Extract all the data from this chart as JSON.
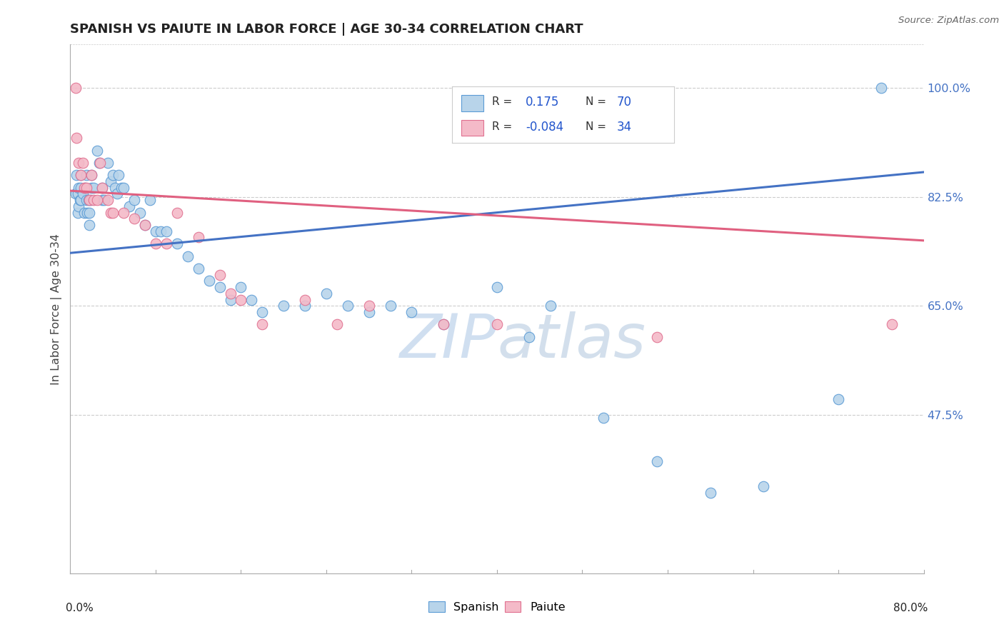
{
  "title": "SPANISH VS PAIUTE IN LABOR FORCE | AGE 30-34 CORRELATION CHART",
  "source_text": "Source: ZipAtlas.com",
  "ylabel": "In Labor Force | Age 30-34",
  "right_yticks": [
    0.475,
    0.65,
    0.825,
    1.0
  ],
  "right_yticklabels": [
    "47.5%",
    "65.0%",
    "82.5%",
    "100.0%"
  ],
  "xlim": [
    0.0,
    0.8
  ],
  "ylim": [
    0.22,
    1.07
  ],
  "blue_color": "#b8d4ea",
  "blue_edge_color": "#5b9bd5",
  "pink_color": "#f4bac8",
  "pink_edge_color": "#e07090",
  "blue_line_color": "#4472c4",
  "pink_line_color": "#e06080",
  "legend_text_color": "#2255cc",
  "sp_trend": [
    0.735,
    0.865
  ],
  "pa_trend": [
    0.835,
    0.755
  ],
  "sp_x": [
    0.005,
    0.006,
    0.007,
    0.007,
    0.008,
    0.008,
    0.009,
    0.01,
    0.01,
    0.01,
    0.012,
    0.013,
    0.014,
    0.015,
    0.015,
    0.016,
    0.017,
    0.018,
    0.018,
    0.019,
    0.02,
    0.02,
    0.022,
    0.025,
    0.027,
    0.03,
    0.03,
    0.032,
    0.035,
    0.038,
    0.04,
    0.042,
    0.044,
    0.045,
    0.048,
    0.05,
    0.055,
    0.06,
    0.065,
    0.07,
    0.075,
    0.08,
    0.085,
    0.09,
    0.1,
    0.11,
    0.12,
    0.13,
    0.14,
    0.15,
    0.16,
    0.17,
    0.18,
    0.2,
    0.22,
    0.24,
    0.26,
    0.28,
    0.3,
    0.32,
    0.35,
    0.4,
    0.43,
    0.45,
    0.5,
    0.55,
    0.6,
    0.65,
    0.72,
    0.76
  ],
  "sp_y": [
    0.83,
    0.86,
    0.8,
    0.83,
    0.84,
    0.81,
    0.82,
    0.86,
    0.84,
    0.82,
    0.83,
    0.8,
    0.84,
    0.86,
    0.82,
    0.8,
    0.82,
    0.8,
    0.78,
    0.82,
    0.86,
    0.84,
    0.84,
    0.9,
    0.88,
    0.84,
    0.82,
    0.82,
    0.88,
    0.85,
    0.86,
    0.84,
    0.83,
    0.86,
    0.84,
    0.84,
    0.81,
    0.82,
    0.8,
    0.78,
    0.82,
    0.77,
    0.77,
    0.77,
    0.75,
    0.73,
    0.71,
    0.69,
    0.68,
    0.66,
    0.68,
    0.66,
    0.64,
    0.65,
    0.65,
    0.67,
    0.65,
    0.64,
    0.65,
    0.64,
    0.62,
    0.68,
    0.6,
    0.65,
    0.47,
    0.4,
    0.35,
    0.36,
    0.5,
    1.0
  ],
  "pa_x": [
    0.005,
    0.006,
    0.008,
    0.01,
    0.012,
    0.013,
    0.015,
    0.018,
    0.02,
    0.022,
    0.025,
    0.028,
    0.03,
    0.035,
    0.038,
    0.04,
    0.05,
    0.06,
    0.07,
    0.08,
    0.09,
    0.1,
    0.12,
    0.14,
    0.15,
    0.16,
    0.18,
    0.22,
    0.25,
    0.28,
    0.35,
    0.4,
    0.55,
    0.77
  ],
  "pa_y": [
    1.0,
    0.92,
    0.88,
    0.86,
    0.88,
    0.84,
    0.84,
    0.82,
    0.86,
    0.82,
    0.82,
    0.88,
    0.84,
    0.82,
    0.8,
    0.8,
    0.8,
    0.79,
    0.78,
    0.75,
    0.75,
    0.8,
    0.76,
    0.7,
    0.67,
    0.66,
    0.62,
    0.66,
    0.62,
    0.65,
    0.62,
    0.62,
    0.6,
    0.62
  ]
}
